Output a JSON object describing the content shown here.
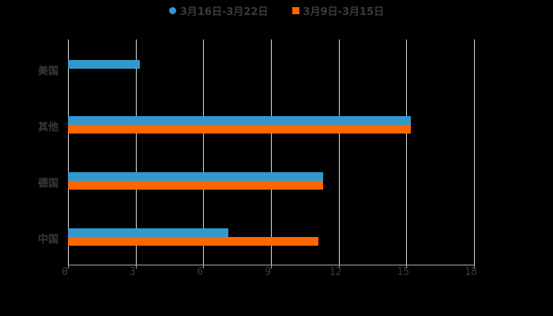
{
  "chart_data": {
    "type": "bar",
    "orientation": "horizontal",
    "title": "",
    "xlabel": "",
    "ylabel": "",
    "categories": [
      "美国",
      "其他",
      "德国",
      "中国"
    ],
    "series": [
      {
        "name": "3月16日-3月22日",
        "color": "#3399cc",
        "values": [
          3.2,
          15.2,
          11.3,
          7.1
        ]
      },
      {
        "name": "3月9日-3月15日",
        "color": "#ff6600",
        "values": [
          null,
          15.2,
          11.3,
          11.1
        ]
      }
    ],
    "xlim": [
      0,
      18
    ],
    "x_ticks": [
      "0",
      "3",
      "6",
      "9",
      "12",
      "15",
      "18"
    ],
    "grid": true,
    "legend_position": "top"
  },
  "legend": {
    "series1_label": "3月16日-3月22日",
    "series2_label": "3月9日-3月15日"
  },
  "colors": {
    "series1": "#3399cc",
    "series2": "#ff6600",
    "background": "#000000",
    "grid": "#d9d9d9",
    "text": "#3a3a3a"
  }
}
